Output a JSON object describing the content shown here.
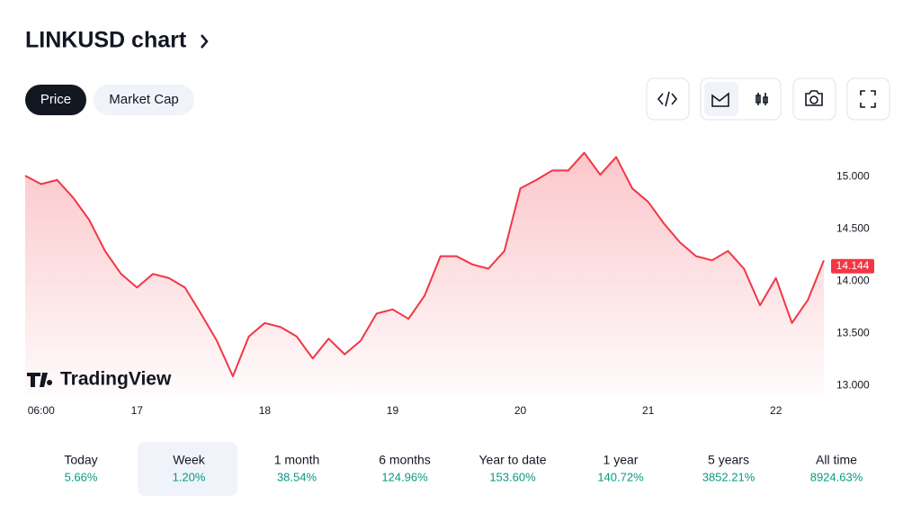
{
  "header": {
    "title": "LINKUSD chart",
    "tabs": [
      "Price",
      "Market Cap"
    ]
  },
  "chart_data": {
    "type": "line",
    "categories": [
      null,
      "06:00",
      null,
      null,
      null,
      null,
      null,
      "17",
      null,
      null,
      null,
      null,
      null,
      null,
      null,
      "18",
      null,
      null,
      null,
      null,
      null,
      null,
      null,
      "19",
      null,
      null,
      null,
      null,
      null,
      null,
      null,
      "20",
      null,
      null,
      null,
      null,
      null,
      null,
      null,
      "21",
      null,
      null,
      null,
      null,
      null,
      null,
      null,
      "22",
      null,
      null,
      null
    ],
    "series": [
      {
        "name": "LINKUSD",
        "color": "#f23645",
        "values": [
          15.01,
          14.93,
          14.97,
          14.8,
          14.59,
          14.29,
          14.07,
          13.94,
          14.07,
          14.03,
          13.94,
          13.69,
          13.43,
          13.09,
          13.47,
          13.6,
          13.56,
          13.47,
          13.26,
          13.45,
          13.3,
          13.43,
          13.69,
          13.73,
          13.64,
          13.86,
          14.24,
          14.24,
          14.16,
          14.12,
          14.29,
          14.89,
          14.97,
          15.06,
          15.06,
          15.23,
          15.02,
          15.19,
          14.89,
          14.76,
          14.55,
          14.37,
          14.24,
          14.2,
          14.29,
          14.12,
          13.77,
          14.03,
          13.6,
          13.82,
          14.2
        ]
      }
    ],
    "last_price": {
      "value": 14.144,
      "label": "14.144"
    },
    "ylim": [
      12.9,
      15.4
    ],
    "yticks": [
      {
        "value": 13,
        "label": "13.000"
      },
      {
        "value": 13.5,
        "label": "13.500"
      },
      {
        "value": 14,
        "label": "14.000"
      },
      {
        "value": 14.5,
        "label": "14.500"
      },
      {
        "value": 15,
        "label": "15.000"
      }
    ],
    "watermark": "TradingView"
  },
  "periods": [
    {
      "name": "Today",
      "change": "5.66%"
    },
    {
      "name": "Week",
      "change": "1.20%"
    },
    {
      "name": "1 month",
      "change": "38.54%"
    },
    {
      "name": "6 months",
      "change": "124.96%"
    },
    {
      "name": "Year to date",
      "change": "153.60%"
    },
    {
      "name": "1 year",
      "change": "140.72%"
    },
    {
      "name": "5 years",
      "change": "3852.21%"
    },
    {
      "name": "All time",
      "change": "8924.63%"
    }
  ]
}
